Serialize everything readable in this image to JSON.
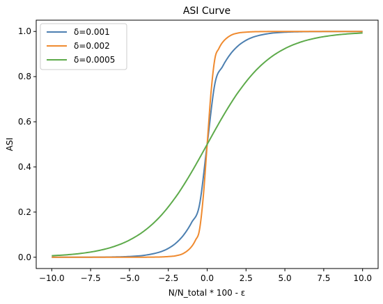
{
  "chart_data": {
    "type": "line",
    "title": "ASI Curve",
    "xlabel": "N/N_total * 100 - ε",
    "ylabel": "ASI",
    "xlim": [
      -10.0,
      10.0
    ],
    "ylim": [
      0.0,
      1.0
    ],
    "x_ticks": [
      "−10.0",
      "−7.5",
      "−5.0",
      "−2.5",
      "0.0",
      "2.5",
      "5.0",
      "7.5",
      "10.0"
    ],
    "y_ticks": [
      "0.0",
      "0.2",
      "0.4",
      "0.6",
      "0.8",
      "1.0"
    ],
    "grid": false,
    "legend_position": "upper-left",
    "series": [
      {
        "name": "δ=0.001",
        "color": "#4c7fb0",
        "x": [
          -10,
          -9,
          -8,
          -7,
          -6,
          -5,
          -4,
          -3,
          -2.5,
          -2,
          -1.5,
          -1,
          -0.5,
          0,
          0.5,
          1,
          1.5,
          2,
          2.5,
          3,
          4,
          5,
          6,
          7,
          8,
          9,
          10
        ],
        "y": [
          0.0,
          0.0001,
          0.0002,
          0.0004,
          0.0012,
          0.0033,
          0.009,
          0.0241,
          0.0392,
          0.0631,
          0.0998,
          0.154,
          0.2301,
          0.5,
          0.7699,
          0.846,
          0.9002,
          0.9369,
          0.9608,
          0.9759,
          0.991,
          0.9967,
          0.9988,
          0.9996,
          0.9998,
          0.9999,
          1.0
        ]
      },
      {
        "name": "δ=0.002",
        "color": "#ef8a2f",
        "x": [
          -10,
          -8,
          -6,
          -5,
          -4,
          -3,
          -2.5,
          -2,
          -1.5,
          -1,
          -0.75,
          -0.5,
          -0.25,
          0,
          0.25,
          0.5,
          0.75,
          1,
          1.5,
          2,
          2.5,
          3,
          4,
          5,
          6,
          8,
          10
        ],
        "y": [
          0.0,
          0.0,
          0.0,
          0.0,
          0.0002,
          0.0012,
          0.003,
          0.0067,
          0.018,
          0.0474,
          0.0759,
          0.1192,
          0.2689,
          0.5,
          0.7311,
          0.8808,
          0.9241,
          0.9526,
          0.982,
          0.9933,
          0.997,
          0.9988,
          0.9998,
          1.0,
          1.0,
          1.0,
          1.0
        ]
      },
      {
        "name": "δ=0.0005",
        "color": "#5daa4a",
        "x": [
          -10,
          -9,
          -8,
          -7,
          -6,
          -5,
          -4,
          -3,
          -2,
          -1.5,
          -1,
          -0.5,
          0,
          0.5,
          1,
          1.5,
          2,
          3,
          4,
          5,
          6,
          7,
          8,
          9,
          10
        ],
        "y": [
          0.0067,
          0.011,
          0.018,
          0.0293,
          0.0474,
          0.0759,
          0.1192,
          0.1824,
          0.2689,
          0.3208,
          0.3775,
          0.4378,
          0.5,
          0.5622,
          0.6225,
          0.6792,
          0.7311,
          0.8176,
          0.8808,
          0.9241,
          0.9526,
          0.9707,
          0.982,
          0.989,
          0.9933
        ]
      }
    ]
  }
}
